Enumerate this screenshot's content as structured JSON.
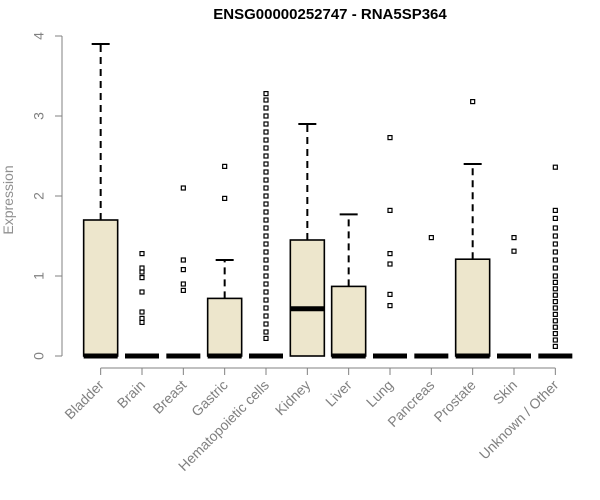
{
  "chart_data": {
    "type": "boxplot",
    "title": "ENSG00000252747 - RNA5SP364",
    "xlabel": "",
    "ylabel": "Expression",
    "ylim": [
      0,
      4
    ],
    "yticks": [
      0,
      1,
      2,
      3,
      4
    ],
    "box_fill": "#ede6cc",
    "categories": [
      "Bladder",
      "Brain",
      "Breast",
      "Gastric",
      "Hematopoietic cells",
      "Kidney",
      "Liver",
      "Lung",
      "Pancreas",
      "Prostate",
      "Skin",
      "Unknown / Other"
    ],
    "boxes": [
      {
        "q1": 0,
        "median": 0,
        "q3": 1.7,
        "whisker_low": 0,
        "whisker_high": 3.9,
        "outliers": []
      },
      {
        "q1": 0,
        "median": 0,
        "q3": 0,
        "whisker_low": 0,
        "whisker_high": 0,
        "outliers": [
          0.42,
          0.47,
          0.55,
          0.8,
          0.98,
          1.05,
          1.1,
          1.28
        ]
      },
      {
        "q1": 0,
        "median": 0,
        "q3": 0,
        "whisker_low": 0,
        "whisker_high": 0,
        "outliers": [
          0.82,
          0.9,
          1.08,
          1.2,
          2.1
        ]
      },
      {
        "q1": 0,
        "median": 0,
        "q3": 0.72,
        "whisker_low": 0,
        "whisker_high": 1.2,
        "outliers": [
          1.97,
          2.37
        ]
      },
      {
        "q1": 0,
        "median": 0,
        "q3": 0,
        "whisker_low": 0,
        "whisker_high": 0,
        "outliers": [
          0.22,
          0.3,
          0.4,
          0.5,
          0.6,
          0.7,
          0.8,
          0.9,
          1.0,
          1.1,
          1.2,
          1.3,
          1.4,
          1.5,
          1.6,
          1.7,
          1.8,
          1.9,
          2.0,
          2.1,
          2.2,
          2.3,
          2.4,
          2.5,
          2.6,
          2.7,
          2.8,
          2.9,
          3.0,
          3.1,
          3.2,
          3.28
        ]
      },
      {
        "q1": 0,
        "median": 0.59,
        "q3": 1.45,
        "whisker_low": 0,
        "whisker_high": 2.9,
        "outliers": []
      },
      {
        "q1": 0,
        "median": 0,
        "q3": 0.87,
        "whisker_low": 0,
        "whisker_high": 1.77,
        "outliers": []
      },
      {
        "q1": 0,
        "median": 0,
        "q3": 0,
        "whisker_low": 0,
        "whisker_high": 0,
        "outliers": [
          0.63,
          0.77,
          1.15,
          1.28,
          1.82,
          2.73
        ]
      },
      {
        "q1": 0,
        "median": 0,
        "q3": 0,
        "whisker_low": 0,
        "whisker_high": 0,
        "outliers": [
          1.48
        ]
      },
      {
        "q1": 0,
        "median": 0,
        "q3": 1.21,
        "whisker_low": 0,
        "whisker_high": 2.4,
        "outliers": [
          3.18
        ]
      },
      {
        "q1": 0,
        "median": 0,
        "q3": 0,
        "whisker_low": 0,
        "whisker_high": 0,
        "outliers": [
          1.31,
          1.48
        ]
      },
      {
        "q1": 0,
        "median": 0,
        "q3": 0,
        "whisker_low": 0,
        "whisker_high": 0,
        "outliers": [
          0.12,
          0.2,
          0.28,
          0.36,
          0.44,
          0.52,
          0.6,
          0.68,
          0.76,
          0.84,
          0.92,
          1.0,
          1.1,
          1.2,
          1.3,
          1.4,
          1.5,
          1.6,
          1.72,
          1.82,
          2.36
        ]
      }
    ]
  }
}
